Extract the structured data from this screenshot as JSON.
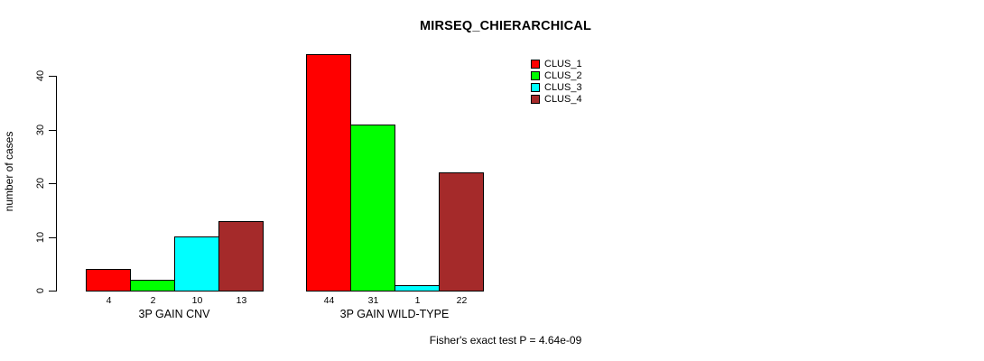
{
  "chart_data": {
    "type": "bar",
    "title": "MIRSEQ_CHIERARCHICAL",
    "xlabel": "",
    "ylabel": "number of cases",
    "ylim": [
      0,
      44
    ],
    "yticks": [
      0,
      10,
      20,
      30,
      40
    ],
    "grid": false,
    "legend_position": "top-right",
    "series": [
      "CLUS_1",
      "CLUS_2",
      "CLUS_3",
      "CLUS_4"
    ],
    "colors": [
      "#ff0000",
      "#00ff00",
      "#00ffff",
      "#a52a2a"
    ],
    "groups": [
      {
        "label": "3P GAIN CNV",
        "values": [
          4,
          2,
          10,
          13
        ]
      },
      {
        "label": "3P GAIN WILD-TYPE",
        "values": [
          44,
          31,
          1,
          22
        ]
      }
    ],
    "annotation": "Fisher's exact test P = 4.64e-09"
  }
}
